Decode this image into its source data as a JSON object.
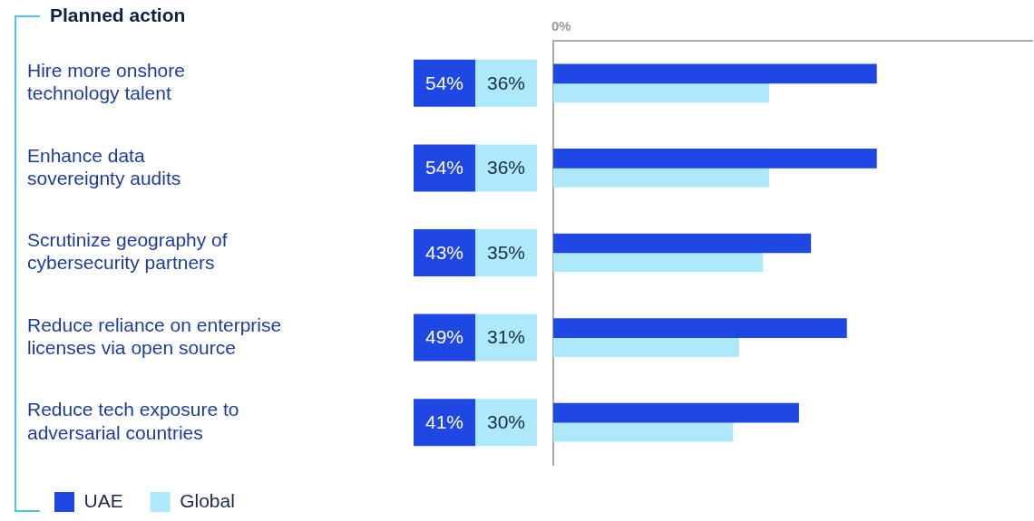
{
  "chart_data": {
    "type": "bar",
    "orientation": "horizontal",
    "title": "Planned action",
    "categories": [
      "Hire more onshore technology talent",
      "Enhance data sovereignty audits",
      "Scrutinize geography of cybersecurity partners",
      "Reduce reliance on enterprise licenses via open source",
      "Reduce tech exposure to adversarial countries"
    ],
    "series": [
      {
        "name": "UAE",
        "color": "#1f47e3",
        "values": [
          54,
          54,
          43,
          49,
          41
        ],
        "value_labels": [
          "54%",
          "54%",
          "43%",
          "49%",
          "41%"
        ]
      },
      {
        "name": "Global",
        "color": "#aee9fb",
        "values": [
          36,
          36,
          35,
          31,
          30
        ],
        "value_labels": [
          "36%",
          "36%",
          "35%",
          "31%",
          "30%"
        ]
      }
    ],
    "annotations": [
      "0%"
    ],
    "legend": "bottom left"
  }
}
